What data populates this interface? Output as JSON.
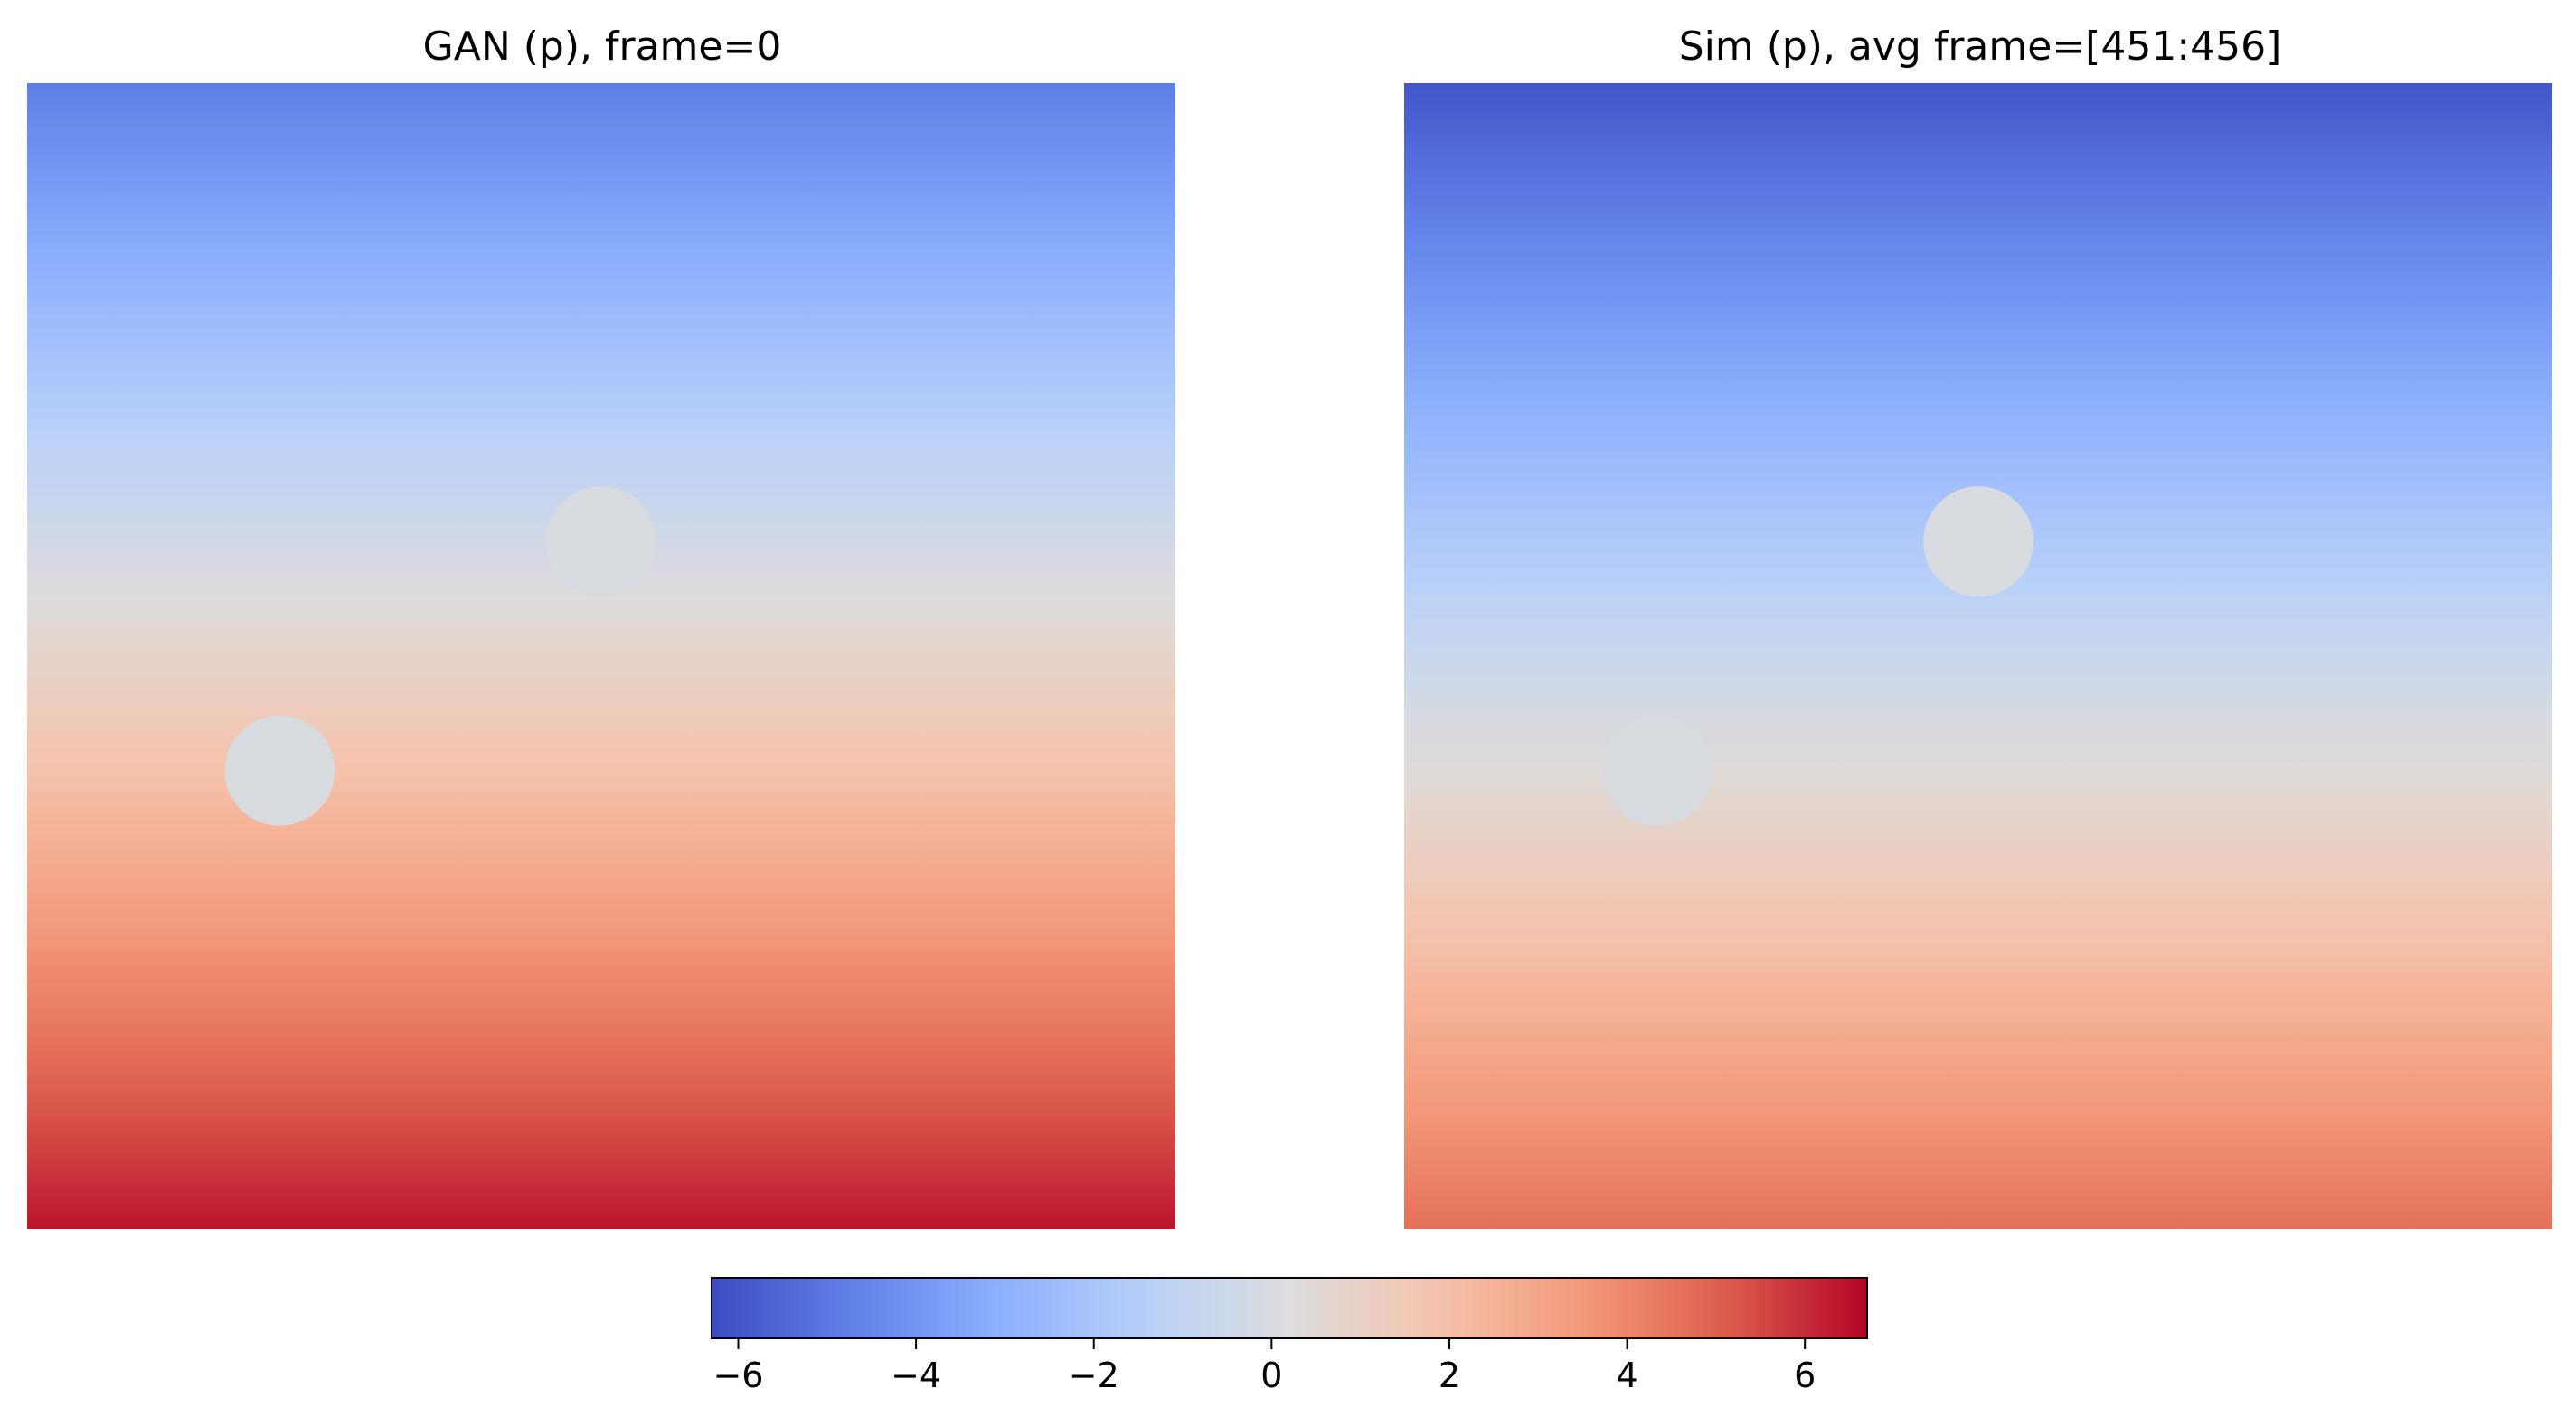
{
  "chart_data": {
    "type": "heatmap",
    "colormap": "coolwarm",
    "panels": [
      {
        "title": "GAN (p), frame=0",
        "value_range_top_to_bottom": [
          -4.8,
          6.4
        ],
        "obstacles": [
          {
            "label": "circle",
            "cx": 0.5,
            "cy": 0.4,
            "r": 0.048
          },
          {
            "label": "circle",
            "cx": 0.22,
            "cy": 0.6,
            "r": 0.048
          }
        ],
        "obstacle_value": 0
      },
      {
        "title": "Sim (p), avg frame=[451:456]",
        "value_range_top_to_bottom": [
          -6.0,
          4.6
        ],
        "obstacles": [
          {
            "label": "circle",
            "cx": 0.5,
            "cy": 0.4,
            "r": 0.048
          },
          {
            "label": "circle",
            "cx": 0.22,
            "cy": 0.6,
            "r": 0.048
          }
        ],
        "obstacle_value": 0
      }
    ],
    "colorbar": {
      "orientation": "horizontal",
      "vmin": -6.3,
      "vmax": 6.7,
      "ticks": [
        -6,
        -4,
        -2,
        0,
        2,
        4,
        6
      ],
      "tick_labels": [
        "−6",
        "−4",
        "−2",
        "0",
        "2",
        "4",
        "6"
      ]
    }
  }
}
